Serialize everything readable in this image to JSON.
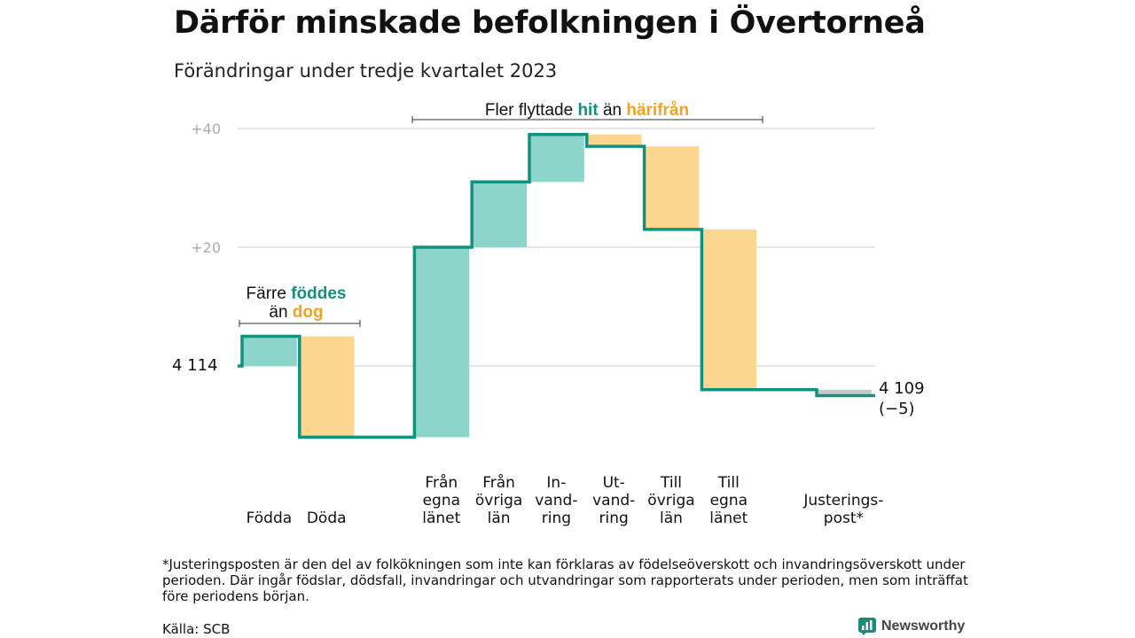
{
  "title": "Därför minskade befolkningen i Övertorneå",
  "subtitle": "Förändringar under tredje kvartalet 2023",
  "annotations": {
    "migration": {
      "prefix": "Fler flyttade",
      "hit": "hit",
      "middle": "än",
      "harifran": "härifrån"
    },
    "births": {
      "line1_prefix": "Färre",
      "line1_hit": "föddes",
      "line2_prefix": "än",
      "line2_dog": "dog"
    }
  },
  "start_label": "4  114",
  "end_label": {
    "value": "4 109",
    "change": "(−5)"
  },
  "footnote": "*Justeringsposten är den del av folkökningen som inte kan förklaras av födelseöverskott och invandringsöverskott under perioden. Där ingår födslar, dödsfall, invandringar och utvandringar som rapporterats under perioden, men som inträffat före periodens början.",
  "source": "Källa: SCB",
  "brand": "Newsworthy",
  "colors": {
    "increase": "#8dd5ca",
    "decrease": "#fbd78f",
    "adjustment": "#c8c8c8",
    "line": "#12917f",
    "accent_hit": "#12917f",
    "accent_away": "#f2a21e",
    "grid": "#dddddd"
  },
  "chart_data": {
    "type": "waterfall",
    "start_value": 4114,
    "end_value": 4109,
    "net_change": -5,
    "ylim": [
      -12,
      42
    ],
    "yticks": [
      {
        "value": 40,
        "label": "+40"
      },
      {
        "value": 20,
        "label": "+20"
      }
    ],
    "steps": [
      {
        "label_lines": [
          "Födda"
        ],
        "change": 5,
        "kind": "increase"
      },
      {
        "label_lines": [
          "Döda"
        ],
        "change": -17,
        "kind": "decrease"
      },
      {
        "label_lines": [
          "",
          "",
          ""
        ],
        "change": 0,
        "kind": "gap"
      },
      {
        "label_lines": [
          "Från",
          "egna",
          "länet"
        ],
        "change": 32,
        "kind": "increase"
      },
      {
        "label_lines": [
          "Från",
          "övriga",
          "län"
        ],
        "change": 11,
        "kind": "increase"
      },
      {
        "label_lines": [
          "In-",
          "vand-",
          "ring"
        ],
        "change": 8,
        "kind": "increase"
      },
      {
        "label_lines": [
          "Ut-",
          "vand-",
          "ring"
        ],
        "change": -2,
        "kind": "decrease"
      },
      {
        "label_lines": [
          "Till",
          "övriga",
          "län"
        ],
        "change": -14,
        "kind": "decrease"
      },
      {
        "label_lines": [
          "Till",
          "egna",
          "länet"
        ],
        "change": -27,
        "kind": "decrease"
      },
      {
        "label_lines": [
          "",
          "",
          ""
        ],
        "change": 0,
        "kind": "gap"
      },
      {
        "label_lines": [
          "Justerings-",
          "post*"
        ],
        "change": -1,
        "kind": "adjustment"
      }
    ]
  }
}
